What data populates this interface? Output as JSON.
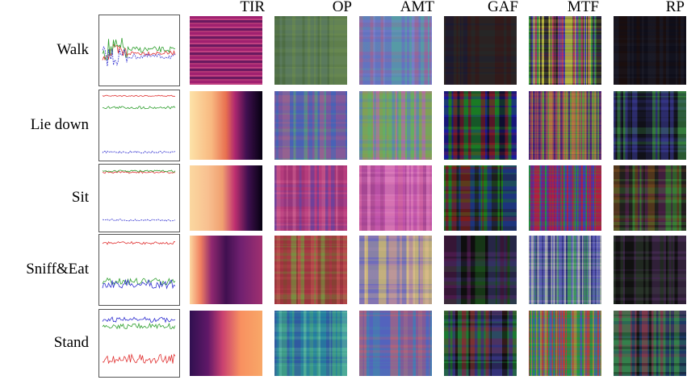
{
  "columns": [
    "TIR",
    "OP",
    "AMT",
    "GAF",
    "MTF",
    "RP"
  ],
  "rows": [
    "Walk",
    "Lie down",
    "Sit",
    "Sniff&Eat",
    "Stand"
  ]
}
